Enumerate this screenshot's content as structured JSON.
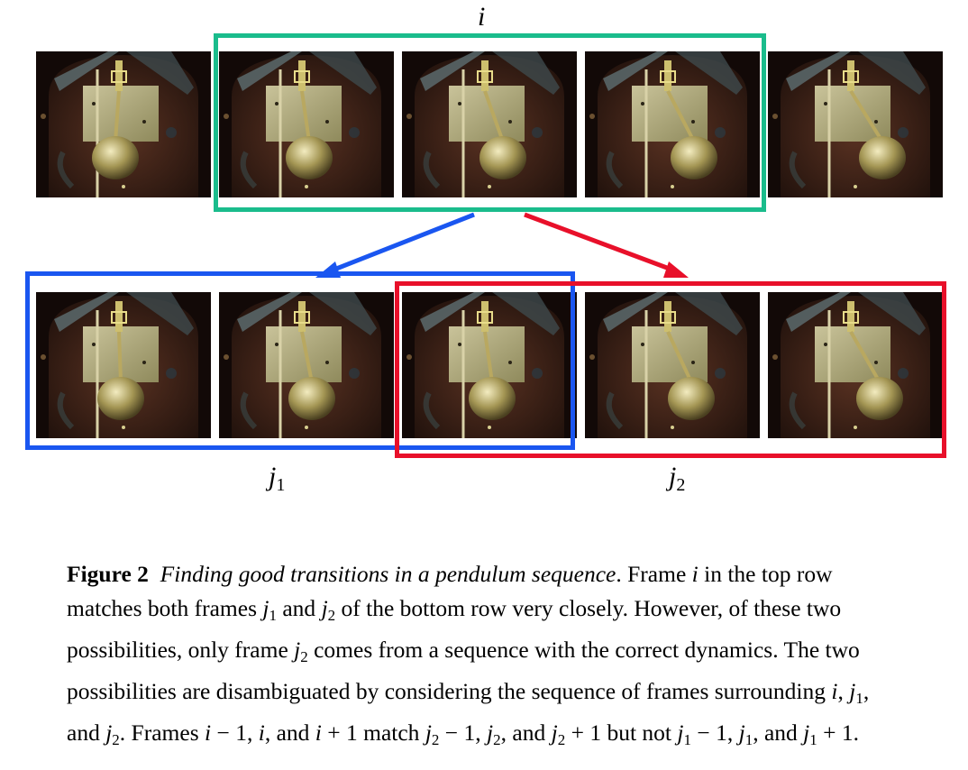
{
  "figure": {
    "top_label": "i",
    "label_j1": {
      "base": "j",
      "sub": "1"
    },
    "label_j2": {
      "base": "j",
      "sub": "2"
    },
    "colors": {
      "top_box": "#1abc8c",
      "blue_box": "#1a56f0",
      "red_box": "#e8102a",
      "blue_arrow": "#1a56f0",
      "red_arrow": "#e8102a"
    },
    "frames": {
      "top_row": [
        {
          "pendulum_phase": 0.35
        },
        {
          "pendulum_phase": 0.55
        },
        {
          "pendulum_phase": 0.75
        },
        {
          "pendulum_phase": 0.9
        },
        {
          "pendulum_phase": 1.0
        }
      ],
      "bottom_row": [
        {
          "pendulum_phase": 0.45
        },
        {
          "pendulum_phase": 0.6
        },
        {
          "pendulum_phase": 0.55
        },
        {
          "pendulum_phase": 0.85
        },
        {
          "pendulum_phase": 0.95
        }
      ]
    }
  },
  "caption": {
    "fig_label": "Figure 2",
    "title": "Finding good transitions in a pendulum sequence",
    "text_1": ". Frame ",
    "text_2": " in the top row matches both frames ",
    "text_3": " and ",
    "text_4": " of the bottom row very closely. However, of these two possibilities, only frame ",
    "text_5": " comes from a sequence with the correct dynamics. The two possibilities are disambiguated by considering the sequence of frames surrounding ",
    "text_6": ", ",
    "text_7": ", and ",
    "text_8": ". Frames ",
    "text_9": " − 1, ",
    "text_10": ", and ",
    "text_11": " + 1 match ",
    "text_12": " − 1, ",
    "text_13": ", and ",
    "text_14": " + 1 but not ",
    "text_15": " − 1, ",
    "text_16": ", and ",
    "text_17": " + 1.",
    "var_i": "i",
    "var_j": "j",
    "sub_1": "1",
    "sub_2": "2"
  }
}
